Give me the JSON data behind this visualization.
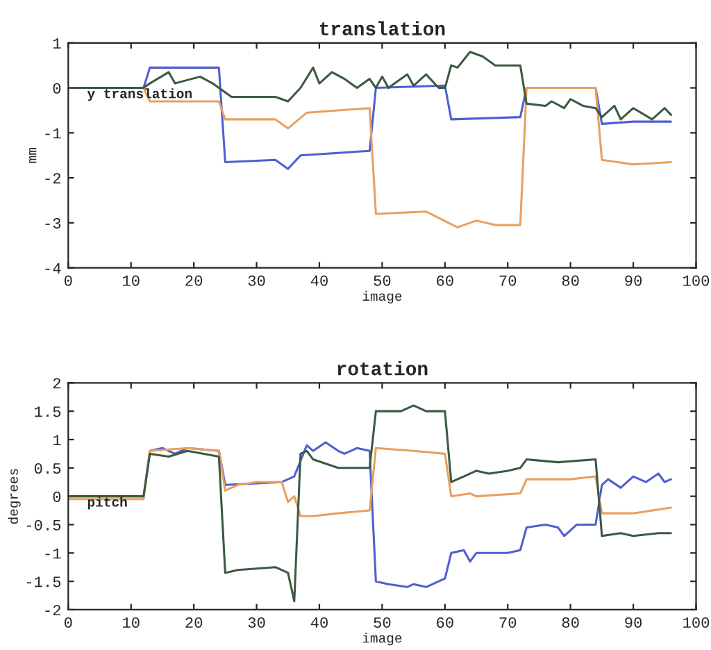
{
  "chart_data": [
    {
      "type": "line",
      "title": "translation",
      "xlabel": "image",
      "ylabel": "mm",
      "annotations": [
        "y translation"
      ],
      "xlim": [
        0,
        100
      ],
      "xticks": [
        0,
        10,
        20,
        30,
        40,
        50,
        60,
        70,
        80,
        90,
        100
      ],
      "ylim": [
        -4,
        1
      ],
      "yticks": [
        -4,
        -3,
        -2,
        -1,
        0,
        1
      ],
      "grid": false,
      "legend": false,
      "series": [
        {
          "color": "#4f5fd0",
          "x": [
            0,
            12,
            13,
            24,
            25,
            33,
            35,
            37,
            48,
            49,
            60,
            61,
            72,
            73,
            84,
            85,
            90,
            96
          ],
          "values": [
            0,
            0,
            0.45,
            0.45,
            -1.65,
            -1.6,
            -1.8,
            -1.5,
            -1.4,
            0,
            0.05,
            -0.7,
            -0.65,
            0,
            0,
            -0.8,
            -0.75,
            -0.75
          ]
        },
        {
          "color": "#e8a060",
          "x": [
            0,
            12,
            13,
            24,
            25,
            33,
            35,
            38,
            48,
            49,
            57,
            62,
            65,
            68,
            72,
            73,
            84,
            85,
            90,
            96
          ],
          "values": [
            0,
            0,
            -0.3,
            -0.3,
            -0.7,
            -0.7,
            -0.9,
            -0.55,
            -0.45,
            -2.8,
            -2.75,
            -3.1,
            -2.95,
            -3.05,
            -3.05,
            0,
            0,
            -1.6,
            -1.7,
            -1.65
          ]
        },
        {
          "color": "#3c5a40",
          "x": [
            0,
            12,
            13,
            16,
            17,
            21,
            23,
            24,
            26,
            33,
            35,
            37,
            39,
            40,
            42,
            44,
            46,
            48,
            49,
            50,
            51,
            54,
            55,
            57,
            59,
            60,
            61,
            62,
            64,
            66,
            68,
            72,
            73,
            76,
            77,
            79,
            80,
            82,
            84,
            85,
            87,
            88,
            90,
            93,
            95,
            96
          ],
          "values": [
            0,
            0,
            0.1,
            0.35,
            0.1,
            0.25,
            0.1,
            0,
            -0.2,
            -0.2,
            -0.3,
            0,
            0.45,
            0.1,
            0.35,
            0.2,
            0,
            0.2,
            0,
            0.25,
            0,
            0.3,
            0.05,
            0.3,
            0,
            0,
            0.5,
            0.45,
            0.8,
            0.7,
            0.5,
            0.5,
            -0.35,
            -0.4,
            -0.3,
            -0.45,
            -0.25,
            -0.4,
            -0.45,
            -0.65,
            -0.4,
            -0.7,
            -0.45,
            -0.7,
            -0.45,
            -0.6
          ]
        }
      ]
    },
    {
      "type": "line",
      "title": "rotation",
      "xlabel": "image",
      "ylabel": "degrees",
      "annotations": [
        "pitch"
      ],
      "xlim": [
        0,
        100
      ],
      "xticks": [
        0,
        10,
        20,
        30,
        40,
        50,
        60,
        70,
        80,
        90,
        100
      ],
      "ylim": [
        -2,
        2
      ],
      "yticks": [
        -2,
        -1.5,
        -1,
        -0.5,
        0,
        0.5,
        1,
        1.5,
        2
      ],
      "grid": false,
      "legend": false,
      "series": [
        {
          "color": "#4f5fd0",
          "x": [
            0,
            12,
            13,
            15,
            17,
            19,
            24,
            25,
            34,
            36,
            38,
            39,
            41,
            43,
            44,
            46,
            48,
            49,
            51,
            54,
            55,
            57,
            59,
            60,
            61,
            63,
            64,
            65,
            70,
            72,
            73,
            76,
            78,
            79,
            81,
            84,
            85,
            86,
            88,
            90,
            92,
            94,
            95,
            96
          ],
          "values": [
            0,
            0,
            0.8,
            0.85,
            0.75,
            0.85,
            0.8,
            0.2,
            0.25,
            0.35,
            0.9,
            0.8,
            0.95,
            0.8,
            0.75,
            0.85,
            0.8,
            -1.5,
            -1.55,
            -1.6,
            -1.55,
            -1.6,
            -1.5,
            -1.45,
            -1.0,
            -0.95,
            -1.15,
            -1.0,
            -1.0,
            -0.95,
            -0.55,
            -0.5,
            -0.55,
            -0.7,
            -0.5,
            -0.5,
            0.2,
            0.3,
            0.15,
            0.35,
            0.25,
            0.4,
            0.25,
            0.3
          ]
        },
        {
          "color": "#e8a060",
          "x": [
            0,
            12,
            13,
            19,
            24,
            25,
            27,
            30,
            34,
            35,
            36,
            37,
            39,
            43,
            48,
            49,
            55,
            60,
            61,
            64,
            65,
            72,
            73,
            80,
            84,
            85,
            90,
            96
          ],
          "values": [
            -0.05,
            -0.05,
            0.8,
            0.85,
            0.8,
            0.1,
            0.2,
            0.25,
            0.25,
            -0.1,
            0,
            -0.35,
            -0.35,
            -0.3,
            -0.25,
            0.85,
            0.8,
            0.75,
            0,
            0.05,
            0,
            0.05,
            0.3,
            0.3,
            0.35,
            -0.3,
            -0.3,
            -0.2
          ]
        },
        {
          "color": "#3c5a40",
          "x": [
            0,
            12,
            13,
            16,
            19,
            24,
            25,
            27,
            33,
            35,
            36,
            37,
            38,
            39,
            43,
            48,
            49,
            53,
            55,
            57,
            60,
            61,
            63,
            65,
            67,
            70,
            72,
            73,
            78,
            84,
            85,
            88,
            90,
            94,
            96
          ],
          "values": [
            0,
            0,
            0.75,
            0.7,
            0.8,
            0.7,
            -1.35,
            -1.3,
            -1.25,
            -1.35,
            -1.85,
            0.75,
            0.8,
            0.65,
            0.5,
            0.5,
            1.5,
            1.5,
            1.6,
            1.5,
            1.5,
            0.25,
            0.35,
            0.45,
            0.4,
            0.45,
            0.5,
            0.65,
            0.6,
            0.65,
            -0.7,
            -0.65,
            -0.7,
            -0.65,
            -0.65
          ]
        }
      ]
    }
  ]
}
